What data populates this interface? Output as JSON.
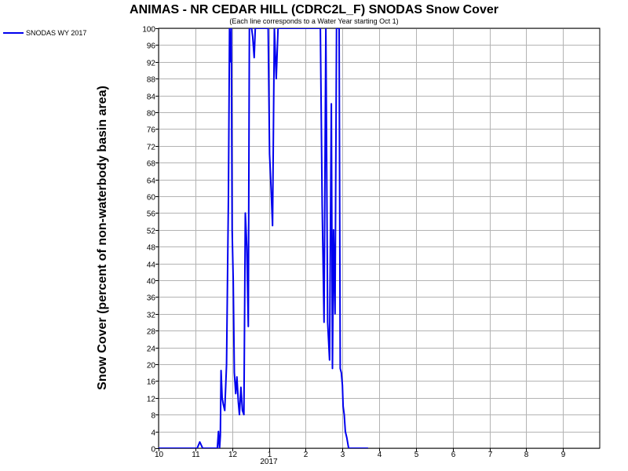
{
  "chart_data": {
    "type": "line",
    "title": "ANIMAS - NR CEDAR HILL (CDRC2L_F) SNODAS Snow Cover",
    "subtitle": "(Each line corresponds to a Water Year starting Oct 1)",
    "ylabel": "Snow Cover (percent of non-waterbody basin area)",
    "xlabel": "",
    "ylim": [
      0,
      100
    ],
    "yticks": [
      0,
      4,
      8,
      12,
      16,
      20,
      24,
      28,
      32,
      36,
      40,
      44,
      48,
      52,
      56,
      60,
      64,
      68,
      72,
      76,
      80,
      84,
      88,
      92,
      96,
      100
    ],
    "xlim": [
      10,
      22
    ],
    "xticks": [
      {
        "value": 10,
        "label": "10"
      },
      {
        "value": 11,
        "label": "11"
      },
      {
        "value": 12,
        "label": "12"
      },
      {
        "value": 13,
        "label": "1"
      },
      {
        "value": 14,
        "label": "2"
      },
      {
        "value": 15,
        "label": "3"
      },
      {
        "value": 16,
        "label": "4"
      },
      {
        "value": 17,
        "label": "5"
      },
      {
        "value": 18,
        "label": "6"
      },
      {
        "value": 19,
        "label": "7"
      },
      {
        "value": 20,
        "label": "8"
      },
      {
        "value": 21,
        "label": "9"
      }
    ],
    "year_label": {
      "value": 13,
      "label": "2017"
    },
    "grid": true,
    "legend_position": "top-left",
    "colors": {
      "series": "#0000ee",
      "grid": "#b3b3b3"
    },
    "series": [
      {
        "name": "SNODAS WY 2017",
        "x": [
          10.0,
          11.05,
          11.12,
          11.2,
          11.3,
          11.6,
          11.63,
          11.66,
          11.68,
          11.7,
          11.73,
          11.76,
          11.8,
          11.85,
          11.9,
          11.93,
          11.96,
          11.98,
          12.0,
          12.03,
          12.06,
          12.1,
          12.13,
          12.17,
          12.2,
          12.24,
          12.28,
          12.32,
          12.36,
          12.4,
          12.44,
          12.47,
          12.5,
          12.53,
          12.56,
          12.6,
          12.63,
          12.67,
          12.7,
          12.75,
          12.8,
          12.85,
          12.9,
          12.94,
          12.98,
          13.02,
          13.06,
          13.1,
          13.15,
          13.2,
          13.25,
          13.3,
          13.36,
          13.4,
          13.44,
          13.48,
          13.52,
          13.56,
          13.6,
          13.64,
          13.7,
          13.8,
          13.9,
          14.0,
          14.1,
          14.15,
          14.2,
          14.3,
          14.35,
          14.4,
          14.45,
          14.5,
          14.55,
          14.6,
          14.65,
          14.7,
          14.73,
          14.76,
          14.8,
          14.84,
          14.88,
          14.91,
          14.94,
          14.97,
          15.0,
          15.02,
          15.05,
          15.08,
          15.12,
          15.17,
          15.25,
          15.35,
          15.45,
          15.5,
          15.55,
          15.6,
          15.65,
          15.7
        ],
        "y": [
          0,
          0,
          1.5,
          0,
          0,
          0,
          4,
          0,
          3,
          18.5,
          12,
          10.5,
          9,
          20,
          60,
          100,
          92,
          100,
          52,
          40,
          18,
          13,
          17,
          11,
          8,
          14.5,
          9,
          8,
          56,
          48,
          29,
          100,
          100,
          100,
          98,
          93,
          100,
          100,
          100,
          100,
          100,
          100,
          100,
          100,
          100,
          70,
          62,
          53,
          100,
          88,
          100,
          100,
          100,
          100,
          100,
          100,
          100,
          100,
          100,
          100,
          100,
          100,
          100,
          100,
          100,
          100,
          100,
          100,
          100,
          100,
          58,
          30,
          100,
          30,
          21,
          82,
          19,
          52,
          32,
          100,
          100,
          100,
          19,
          18,
          15,
          10,
          8,
          4,
          2.5,
          0,
          0,
          0,
          0,
          0,
          0,
          0,
          0,
          0
        ]
      }
    ]
  }
}
